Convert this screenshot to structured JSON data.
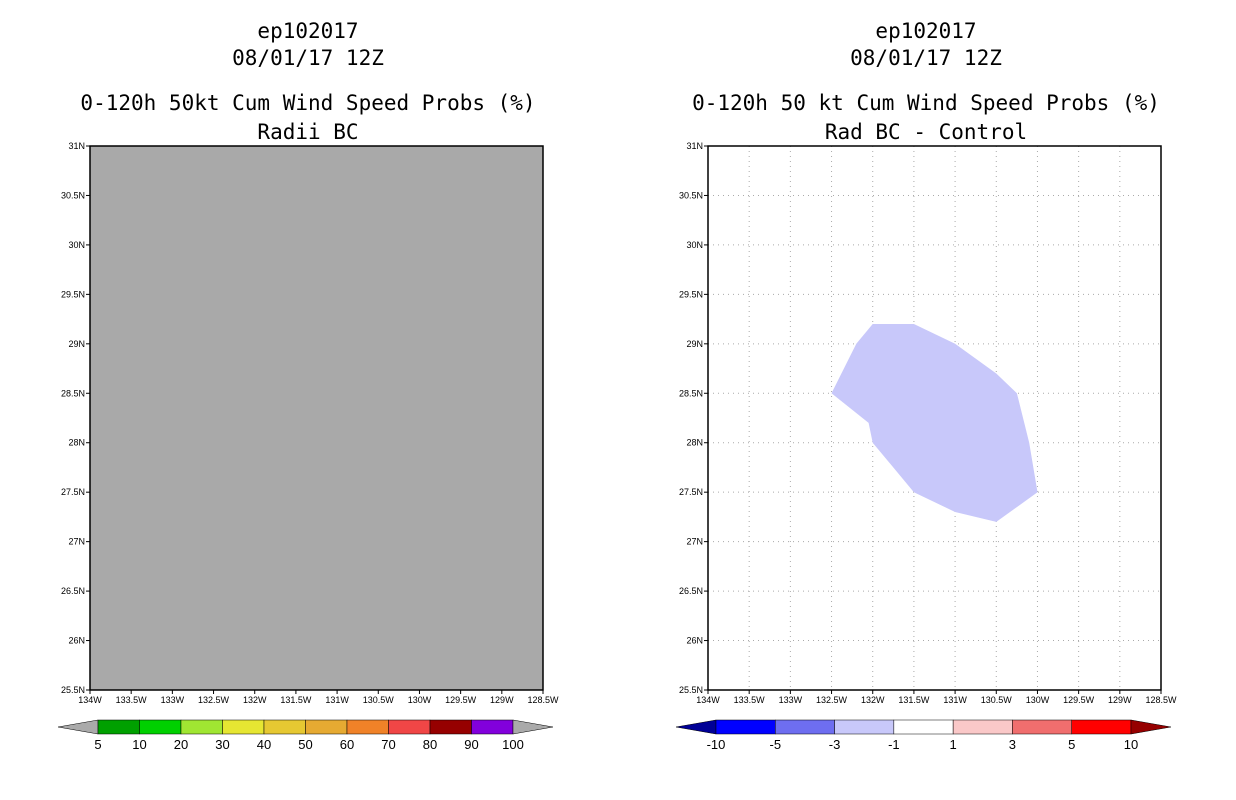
{
  "panels": [
    {
      "storm_id": "ep102017",
      "datetime": "08/01/17 12Z",
      "title": "0-120h 50kt Cum Wind Speed Probs (%)",
      "subtitle": "Radii BC",
      "fill_color": "#a9a9a9",
      "grid": false,
      "colorbar": {
        "colors": [
          "#aaaaaa",
          "#00a000",
          "#00d000",
          "#a0e632",
          "#e6e632",
          "#e6c832",
          "#e6aa32",
          "#f08228",
          "#f04646",
          "#960000",
          "#8200dc",
          "#aaaaaa"
        ],
        "labels": [
          "5",
          "10",
          "20",
          "30",
          "40",
          "50",
          "60",
          "70",
          "80",
          "90",
          "100"
        ]
      }
    },
    {
      "storm_id": "ep102017",
      "datetime": "08/01/17 12Z",
      "title": "0-120h 50 kt Cum Wind Speed Probs (%)",
      "subtitle": "Rad BC - Control",
      "fill_color": "#ffffff",
      "grid": true,
      "colorbar": {
        "colors": [
          "#000096",
          "#0000ff",
          "#6e6ef0",
          "#c8c8fa",
          "#ffffff",
          "#fac8c8",
          "#f06e6e",
          "#ff0000",
          "#960000"
        ],
        "labels": [
          "-10",
          "-5",
          "-3",
          "-1",
          "1",
          "3",
          "5",
          "10"
        ]
      }
    }
  ],
  "map": {
    "lon_range": [
      -134,
      -128.5
    ],
    "lat_range": [
      25.5,
      31
    ],
    "lon_ticks": [
      "134W",
      "133.5W",
      "133W",
      "132.5W",
      "132W",
      "131.5W",
      "131W",
      "130.5W",
      "130W",
      "129.5W",
      "129W",
      "128.5W"
    ],
    "lat_ticks": [
      "31N",
      "30.5N",
      "30N",
      "29.5N",
      "29N",
      "28.5N",
      "28N",
      "27.5N",
      "27N",
      "26.5N",
      "26N",
      "25.5N"
    ]
  },
  "diff_region": {
    "value_bin": "-3 to -1",
    "color": "#c8c8fa",
    "outline_lonlat": [
      [
        -132.5,
        28.5
      ],
      [
        -132.2,
        29.0
      ],
      [
        -132.0,
        29.2
      ],
      [
        -131.5,
        29.2
      ],
      [
        -131.0,
        29.0
      ],
      [
        -130.5,
        28.7
      ],
      [
        -130.25,
        28.5
      ],
      [
        -130.1,
        28.0
      ],
      [
        -130.0,
        27.5
      ],
      [
        -130.5,
        27.2
      ],
      [
        -131.0,
        27.3
      ],
      [
        -131.5,
        27.5
      ],
      [
        -132.0,
        28.0
      ],
      [
        -132.05,
        28.2
      ]
    ]
  }
}
